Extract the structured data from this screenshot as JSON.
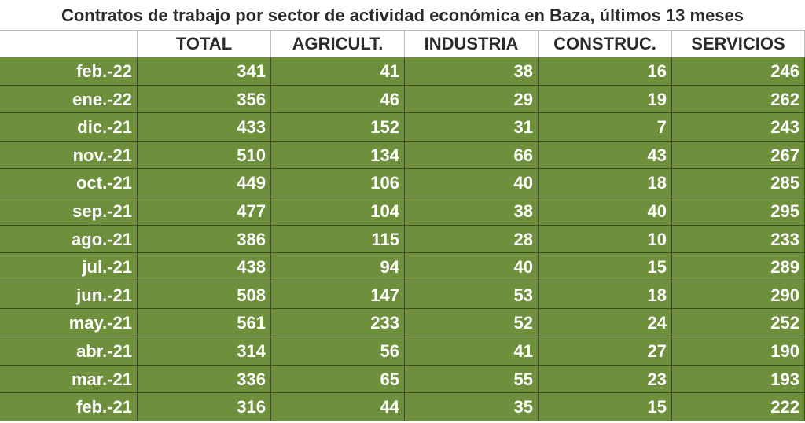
{
  "header": {
    "title": "Contratos de trabajo por sector de actividad económica en Baza, últimos 13 meses"
  },
  "table": {
    "columns": [
      "TOTAL",
      "AGRICULT.",
      "INDUSTRIA",
      "CONSTRUC.",
      "SERVICIOS"
    ],
    "rows": [
      [
        "feb.-22",
        341,
        41,
        38,
        16,
        246
      ],
      [
        "ene.-22",
        356,
        46,
        29,
        19,
        262
      ],
      [
        "dic.-21",
        433,
        152,
        31,
        7,
        243
      ],
      [
        "nov.-21",
        510,
        134,
        66,
        43,
        267
      ],
      [
        "oct.-21",
        449,
        106,
        40,
        18,
        285
      ],
      [
        "sep.-21",
        477,
        104,
        38,
        40,
        295
      ],
      [
        "ago.-21",
        386,
        115,
        28,
        10,
        233
      ],
      [
        "jul.-21",
        438,
        94,
        40,
        15,
        289
      ],
      [
        "jun.-21",
        508,
        147,
        53,
        18,
        290
      ],
      [
        "may.-21",
        561,
        233,
        52,
        24,
        252
      ],
      [
        "abr.-21",
        314,
        56,
        41,
        27,
        190
      ],
      [
        "mar.-21",
        336,
        65,
        55,
        23,
        193
      ],
      [
        "feb.-21",
        316,
        44,
        35,
        15,
        222
      ]
    ]
  }
}
